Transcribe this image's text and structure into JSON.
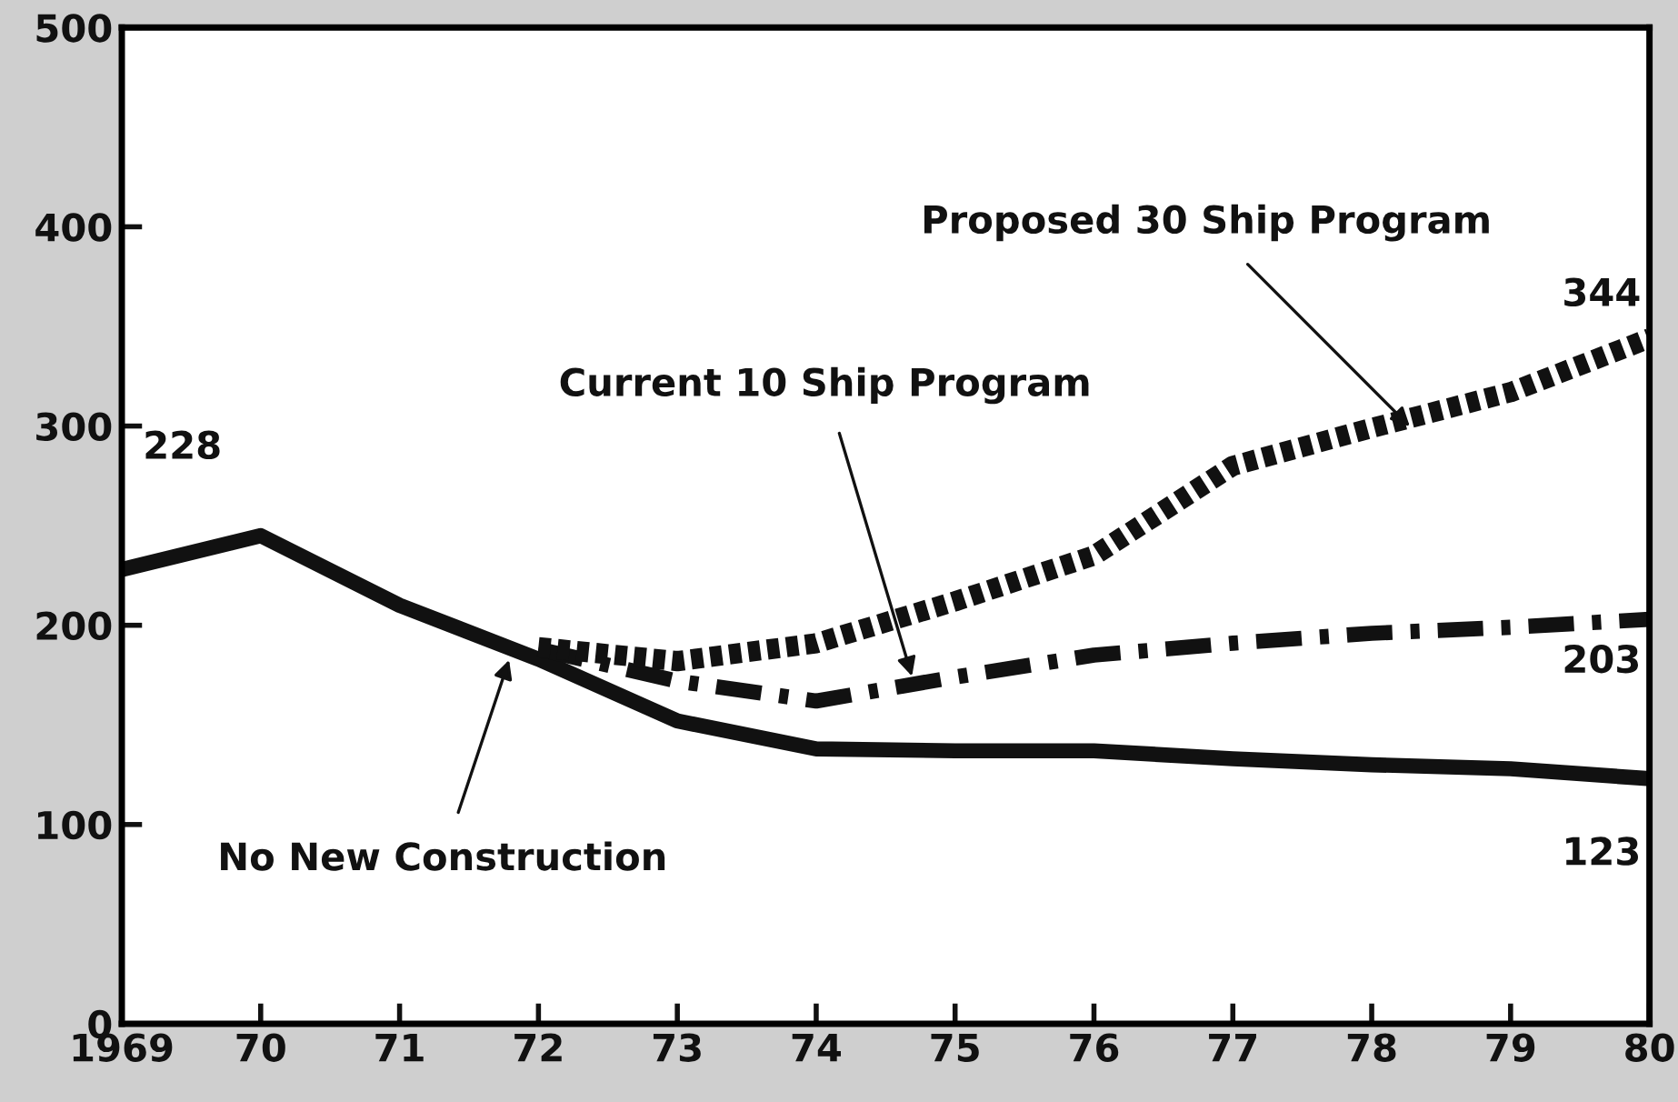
{
  "chart_data": {
    "type": "line",
    "x": [
      1969,
      1970,
      1971,
      1972,
      1973,
      1974,
      1975,
      1976,
      1977,
      1978,
      1979,
      1980
    ],
    "series": [
      {
        "color": "#111111",
        "line_style": "solid",
        "values": [
          228,
          245,
          210,
          183,
          152,
          138,
          137,
          137,
          133,
          130,
          128,
          123
        ]
      },
      {
        "color": "#111111",
        "line_style": "dashdot",
        "values": [
          null,
          null,
          null,
          188,
          172,
          162,
          174,
          185,
          191,
          196,
          199,
          203
        ]
      },
      {
        "color": "#111111",
        "line_style": "dotted",
        "values": [
          null,
          null,
          null,
          189,
          182,
          191,
          212,
          235,
          280,
          299,
          317,
          344
        ]
      }
    ],
    "annotations": [
      {
        "text": "No New Construction",
        "x": 1971.8,
        "y": 185
      },
      {
        "text": "Current 10 Ship Program",
        "x": 1974.7,
        "y": 172
      },
      {
        "text": "Proposed 30 Ship Program",
        "x": 1978.3,
        "y": 298
      },
      {
        "text": "228",
        "x": 1969,
        "y": 228
      },
      {
        "text": "344",
        "x": 1980,
        "y": 344
      },
      {
        "text": "203",
        "x": 1980,
        "y": 203
      },
      {
        "text": "123",
        "x": 1980,
        "y": 123
      }
    ],
    "xlim": [
      1969,
      1980
    ],
    "xticks": [
      {
        "value": 1969,
        "label": "1969"
      },
      {
        "value": 1970,
        "label": "70"
      },
      {
        "value": 1971,
        "label": "71"
      },
      {
        "value": 1972,
        "label": "72"
      },
      {
        "value": 1973,
        "label": "73"
      },
      {
        "value": 1974,
        "label": "74"
      },
      {
        "value": 1975,
        "label": "75"
      },
      {
        "value": 1976,
        "label": "76"
      },
      {
        "value": 1977,
        "label": "77"
      },
      {
        "value": 1978,
        "label": "78"
      },
      {
        "value": 1979,
        "label": "79"
      },
      {
        "value": 1980,
        "label": "80"
      }
    ],
    "ylim": [
      0,
      500
    ],
    "yticks": [
      0,
      100,
      200,
      300,
      400,
      500
    ],
    "grid": false,
    "legend": false
  }
}
